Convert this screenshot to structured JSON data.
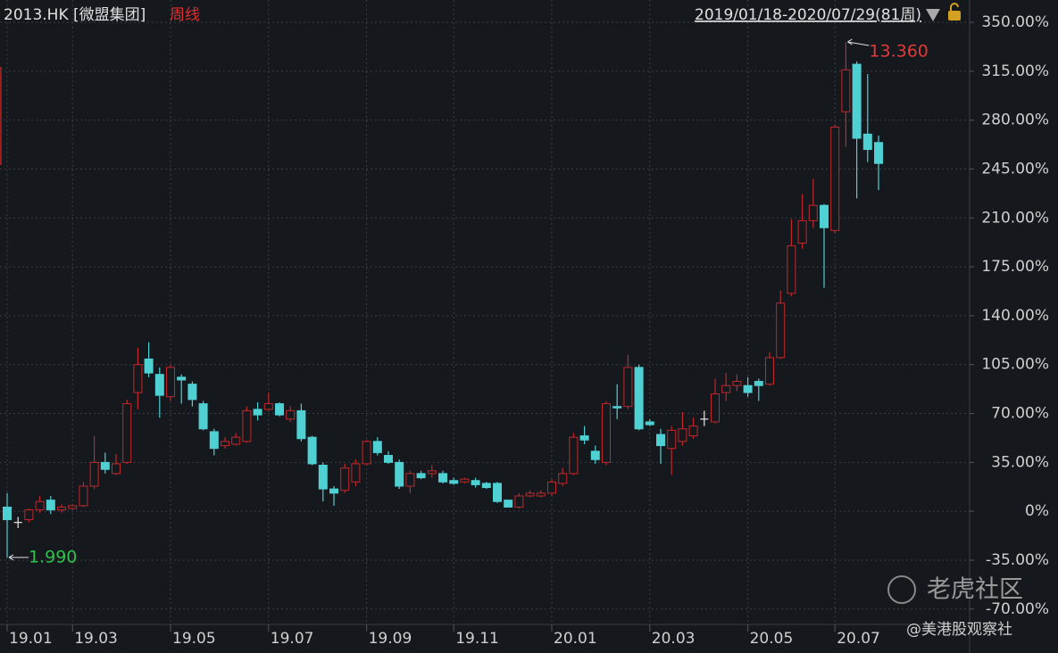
{
  "header": {
    "symbol": "2013.HK [微盟集团]",
    "period": "周线",
    "range": "2019/01/18-2020/07/29(81周)"
  },
  "watermark": {
    "brand": "老虎社区",
    "author": "@美港股观察社"
  },
  "chart_data": {
    "type": "candlestick",
    "high_label": "13.360",
    "low_label": "1.990",
    "up_color": "#c0282b",
    "down_color": "#4fd0d3",
    "flat_color": "#e8e8e8",
    "grid": true,
    "ylim": [
      -81,
      366
    ],
    "yticks": [
      {
        "value": 350,
        "label": "350.00%"
      },
      {
        "value": 315,
        "label": "315.00%"
      },
      {
        "value": 280,
        "label": "280.00%"
      },
      {
        "value": 245,
        "label": "245.00%"
      },
      {
        "value": 210,
        "label": "210.00%"
      },
      {
        "value": 175,
        "label": "175.00%"
      },
      {
        "value": 140,
        "label": "140.00%"
      },
      {
        "value": 105,
        "label": "105.00%"
      },
      {
        "value": 70,
        "label": "70.00%"
      },
      {
        "value": 35,
        "label": "35.00%"
      },
      {
        "value": 0,
        "label": "0%"
      },
      {
        "value": -35,
        "label": "-35.00%"
      },
      {
        "value": -70,
        "label": "-70.00%"
      }
    ],
    "categories": [
      "19.01",
      null,
      null,
      null,
      null,
      null,
      "19.03",
      null,
      null,
      null,
      null,
      null,
      null,
      null,
      null,
      "19.05",
      null,
      null,
      null,
      null,
      null,
      null,
      null,
      null,
      "19.07",
      null,
      null,
      null,
      null,
      null,
      null,
      null,
      null,
      "19.09",
      null,
      null,
      null,
      null,
      null,
      null,
      null,
      "19.11",
      null,
      null,
      null,
      null,
      null,
      null,
      null,
      null,
      "20.01",
      null,
      null,
      null,
      null,
      null,
      null,
      null,
      null,
      "20.03",
      null,
      null,
      null,
      null,
      null,
      null,
      null,
      null,
      "20.05",
      null,
      null,
      null,
      null,
      null,
      null,
      null,
      "20.07",
      null,
      null,
      null,
      null
    ],
    "open": [
      3,
      -8,
      -6,
      1,
      8,
      1,
      2,
      4,
      18,
      35,
      27,
      35,
      85,
      109,
      98,
      82,
      96,
      91,
      77,
      57,
      47,
      48,
      50,
      73,
      73,
      77,
      66,
      72,
      53,
      33,
      16,
      15,
      21,
      34,
      50,
      40,
      35,
      18,
      27,
      27,
      27,
      22,
      21,
      22,
      20,
      20,
      8,
      3,
      11,
      11,
      13,
      20,
      27,
      54,
      43,
      35,
      75,
      75,
      103,
      64,
      55,
      45,
      50,
      54,
      66,
      64,
      85,
      90,
      90,
      93,
      91,
      110,
      156,
      192,
      208,
      219,
      201,
      286,
      320,
      270,
      264
    ],
    "high": [
      13,
      -4,
      2,
      11,
      11,
      5,
      5,
      21,
      54,
      42,
      41,
      80,
      117,
      121,
      103,
      105,
      98,
      93,
      79,
      59,
      53,
      56,
      75,
      78,
      85,
      78,
      75,
      77,
      54,
      35,
      18,
      34,
      37,
      51,
      53,
      43,
      37,
      29,
      29,
      33,
      29,
      24,
      24,
      24,
      21,
      21,
      8,
      13,
      15,
      15,
      23,
      31,
      56,
      61,
      47,
      79,
      91,
      112,
      105,
      66,
      59,
      61,
      71,
      67,
      72,
      95,
      99,
      98,
      96,
      95,
      114,
      158,
      209,
      227,
      238,
      220,
      277,
      336,
      322,
      313,
      269
    ],
    "low": [
      -33,
      -12,
      -8,
      -1,
      -2,
      -1,
      1,
      3,
      16,
      27,
      26,
      34,
      73,
      96,
      67,
      79,
      77,
      75,
      58,
      40,
      45,
      47,
      49,
      65,
      72,
      68,
      64,
      50,
      33,
      7,
      4,
      13,
      18,
      33,
      40,
      34,
      16,
      13,
      23,
      24,
      20,
      19,
      20,
      17,
      16,
      6,
      3,
      2,
      10,
      10,
      11,
      18,
      26,
      48,
      34,
      33,
      66,
      73,
      58,
      61,
      34,
      26,
      47,
      52,
      61,
      63,
      79,
      86,
      82,
      79,
      90,
      109,
      154,
      188,
      203,
      160,
      199,
      261,
      224,
      250,
      230
    ],
    "close": [
      -6,
      -8,
      1,
      7,
      1,
      3,
      4,
      18,
      35,
      30,
      34,
      77,
      105,
      99,
      83,
      103,
      94,
      80,
      59,
      45,
      50,
      53,
      72,
      69,
      77,
      69,
      72,
      52,
      34,
      16,
      13,
      31,
      34,
      50,
      42,
      35,
      18,
      27,
      24,
      29,
      21,
      20,
      23,
      19,
      17,
      7,
      3,
      11,
      13,
      13,
      21,
      27,
      53,
      51,
      37,
      77,
      74,
      103,
      59,
      62,
      47,
      58,
      59,
      61,
      66,
      84,
      90,
      93,
      85,
      90,
      110,
      149,
      190,
      208,
      219,
      203,
      275,
      316,
      267,
      259,
      249
    ]
  }
}
